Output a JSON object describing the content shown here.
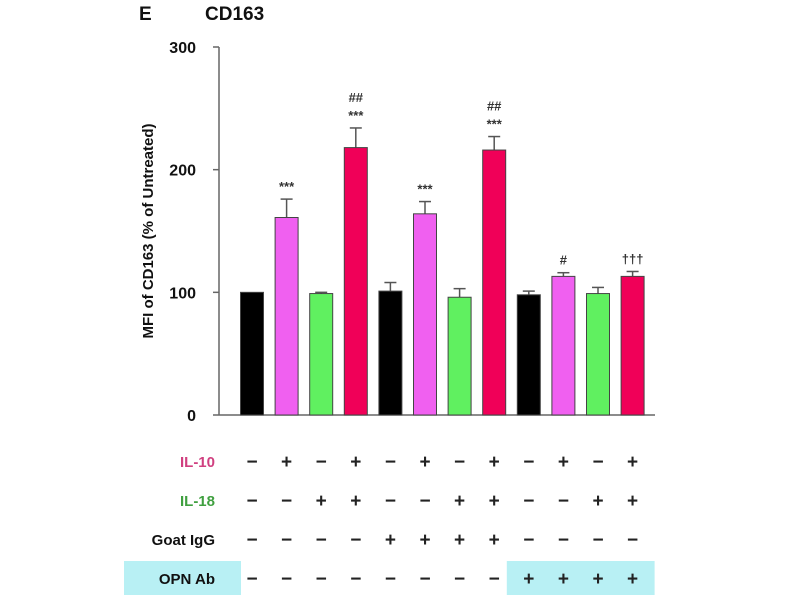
{
  "panel_label": "E",
  "chart_data": {
    "type": "bar",
    "title": "CD163",
    "ylabel": "MFI of CD163 (% of Untreated)",
    "xlabel": "",
    "ylim": [
      0,
      300
    ],
    "yticks": [
      0,
      100,
      200,
      300
    ],
    "grid": false,
    "values": [
      100,
      161,
      99,
      218,
      101,
      164,
      96,
      216,
      98,
      113,
      99,
      113
    ],
    "errors": [
      0,
      15,
      1,
      16,
      7,
      10,
      7,
      11,
      3,
      3,
      5,
      4
    ],
    "bar_colors": [
      "#000000",
      "#f060f0",
      "#60f060",
      "#f00058",
      "#000000",
      "#f060f0",
      "#60f060",
      "#f00058",
      "#000000",
      "#f060f0",
      "#60f060",
      "#f00058"
    ],
    "annotations": [
      [
        "",
        ""
      ],
      [
        "***",
        ""
      ],
      [
        "",
        ""
      ],
      [
        "***",
        "##"
      ],
      [
        "",
        ""
      ],
      [
        "***",
        ""
      ],
      [
        "",
        ""
      ],
      [
        "***",
        "##"
      ],
      [
        "",
        ""
      ],
      [
        "#",
        ""
      ],
      [
        "",
        ""
      ],
      [
        "†††",
        ""
      ]
    ],
    "conditions": [
      {
        "label": "IL-10",
        "color": "#d04080",
        "signs": [
          "−",
          "+",
          "−",
          "+",
          "−",
          "+",
          "−",
          "+",
          "−",
          "+",
          "−",
          "+"
        ]
      },
      {
        "label": "IL-18",
        "color": "#40a040",
        "signs": [
          "−",
          "−",
          "+",
          "+",
          "−",
          "−",
          "+",
          "+",
          "−",
          "−",
          "+",
          "+"
        ]
      },
      {
        "label": "Goat IgG",
        "color": "#111111",
        "signs": [
          "−",
          "−",
          "−",
          "−",
          "+",
          "+",
          "+",
          "+",
          "−",
          "−",
          "−",
          "−"
        ]
      },
      {
        "label": "OPN Ab",
        "color": "#111111",
        "signs": [
          "−",
          "−",
          "−",
          "−",
          "−",
          "−",
          "−",
          "−",
          "+",
          "+",
          "+",
          "+"
        ],
        "highlight": "#b8f0f4"
      }
    ]
  }
}
